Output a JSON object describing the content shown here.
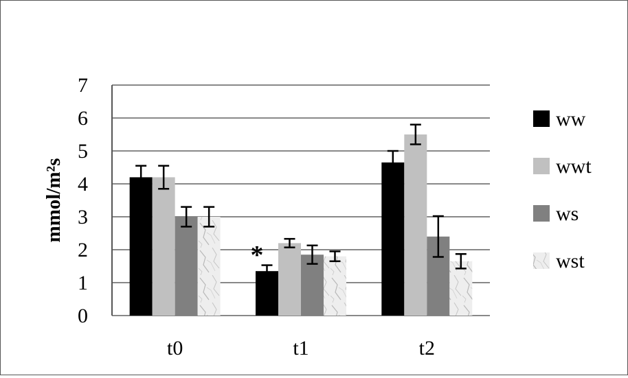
{
  "chart_data": {
    "type": "bar",
    "title": "",
    "xlabel": "",
    "ylabel": "mmol/m²s",
    "ylim": [
      0,
      7
    ],
    "yticks": [
      0,
      1,
      2,
      3,
      4,
      5,
      6,
      7
    ],
    "grid": true,
    "legend_position": "right",
    "categories": [
      "t0",
      "t1",
      "t2"
    ],
    "series": [
      {
        "name": "ww",
        "color": "#000000",
        "values": [
          4.2,
          1.35,
          4.65
        ],
        "errors": [
          0.35,
          0.18,
          0.35
        ]
      },
      {
        "name": "wwt",
        "color": "#c0c0c0",
        "values": [
          4.2,
          2.2,
          5.5
        ],
        "errors": [
          0.35,
          0.13,
          0.3
        ]
      },
      {
        "name": "ws",
        "color": "#808080",
        "values": [
          3.0,
          1.85,
          2.4
        ],
        "errors": [
          0.3,
          0.28,
          0.62
        ]
      },
      {
        "name": "wst",
        "color": "#e6e6e6",
        "pattern": "marble",
        "values": [
          3.0,
          1.8,
          1.65
        ],
        "errors": [
          0.3,
          0.15,
          0.22
        ]
      }
    ],
    "annotations": [
      {
        "text": "*",
        "category": "t1",
        "series": "ww"
      }
    ]
  }
}
